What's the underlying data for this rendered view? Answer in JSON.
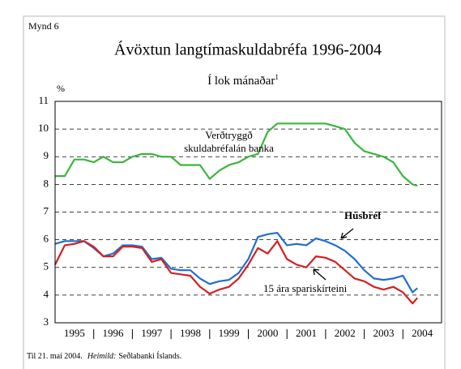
{
  "chart_data": {
    "type": "line",
    "label": "Mynd 6",
    "title": "Ávöxtun langtímaskuldabréfa 1996-2004",
    "subtitle": "Í lok mánaðar",
    "subtitle_note": "1",
    "y_unit": "%",
    "footnote": "Til 21. maí 2004.",
    "source_label": "Heimild:",
    "source": "Seðlabanki Íslands.",
    "x": [
      1995,
      1995.25,
      1995.5,
      1995.75,
      1996,
      1996.25,
      1996.5,
      1996.75,
      1997,
      1997.25,
      1997.5,
      1997.75,
      1998,
      1998.25,
      1998.5,
      1998.75,
      1999,
      1999.25,
      1999.5,
      1999.75,
      2000,
      2000.25,
      2000.5,
      2000.75,
      2001,
      2001.25,
      2001.5,
      2001.75,
      2002,
      2002.25,
      2002.5,
      2002.75,
      2003,
      2003.25,
      2003.5,
      2003.75,
      2004,
      2004.25,
      2004.375
    ],
    "series": [
      {
        "name": "Verðtryggð skuldabréfalán banka",
        "color": "#3cb53c",
        "values": [
          8.3,
          8.3,
          8.9,
          8.9,
          8.8,
          9.0,
          8.8,
          8.8,
          9.0,
          9.1,
          9.1,
          9.0,
          9.0,
          8.7,
          8.7,
          8.7,
          8.2,
          8.5,
          8.7,
          8.8,
          9.0,
          9.1,
          9.9,
          10.2,
          10.2,
          10.2,
          10.2,
          10.2,
          10.2,
          10.1,
          10.0,
          9.5,
          9.2,
          9.1,
          9.0,
          8.8,
          8.3,
          8.0,
          7.95
        ]
      },
      {
        "name": "Húsbréf",
        "color": "#1f6fd1",
        "values": [
          5.85,
          5.95,
          5.95,
          5.95,
          5.7,
          5.4,
          5.5,
          5.8,
          5.8,
          5.75,
          5.3,
          5.35,
          4.95,
          4.9,
          4.9,
          4.6,
          4.4,
          4.5,
          4.55,
          4.8,
          5.3,
          6.1,
          6.2,
          6.25,
          5.8,
          5.85,
          5.8,
          6.05,
          5.95,
          5.8,
          5.6,
          5.3,
          4.9,
          4.6,
          4.55,
          4.6,
          4.7,
          4.1,
          4.25
        ]
      },
      {
        "name": "15 ára spariskírteini",
        "color": "#d42020",
        "values": [
          5.1,
          5.8,
          5.85,
          5.95,
          5.75,
          5.4,
          5.4,
          5.75,
          5.75,
          5.7,
          5.2,
          5.3,
          4.8,
          4.75,
          4.7,
          4.3,
          4.05,
          4.2,
          4.3,
          4.6,
          5.1,
          5.7,
          5.5,
          5.95,
          5.3,
          5.1,
          5.0,
          5.4,
          5.35,
          5.2,
          4.9,
          4.6,
          4.5,
          4.3,
          4.2,
          4.3,
          4.1,
          3.7,
          3.9
        ]
      }
    ],
    "xlim": [
      1995,
      2005
    ],
    "xticks": [
      {
        "value": 1995.5,
        "label": "1995"
      },
      {
        "value": 1996.5,
        "label": "1996"
      },
      {
        "value": 1997.5,
        "label": "1997"
      },
      {
        "value": 1998.5,
        "label": "1998"
      },
      {
        "value": 1999.5,
        "label": "1999"
      },
      {
        "value": 2000.5,
        "label": "2000"
      },
      {
        "value": 2001.5,
        "label": "2001"
      },
      {
        "value": 2002.5,
        "label": "2002"
      },
      {
        "value": 2003.5,
        "label": "2003"
      },
      {
        "value": 2004.5,
        "label": "2004"
      }
    ],
    "ylim": [
      3,
      11
    ],
    "yticks": [
      3,
      4,
      5,
      6,
      7,
      8,
      9,
      10,
      11
    ],
    "grid": true
  }
}
